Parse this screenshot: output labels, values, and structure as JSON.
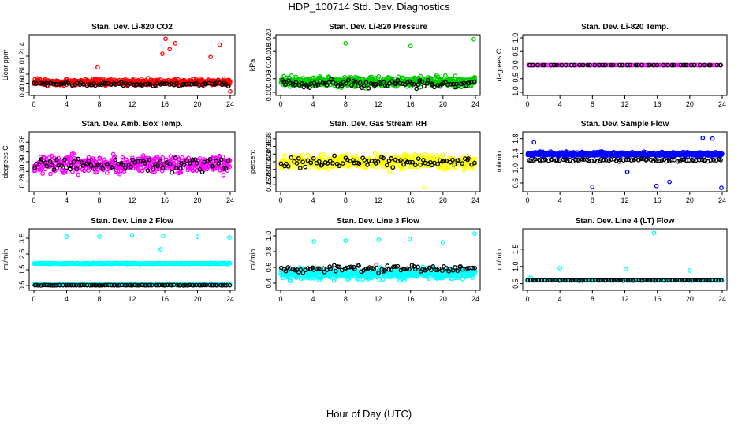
{
  "title": "HDP_100714  Std. Dev. Diagnostics",
  "xlabel": "Hour of Day (UTC)",
  "colors": {
    "red": "#ff0000",
    "green": "#00cc00",
    "magenta": "#ff00ff",
    "yellow": "#ffff00",
    "blue": "#0000ff",
    "cyan": "#00ffff",
    "black": "#000000"
  },
  "x_ticks": [
    "0",
    "4",
    "8",
    "12",
    "16",
    "20",
    "24"
  ],
  "chart_data": [
    {
      "type": "scatter",
      "title": "Stan. Dev. Li-820 CO2",
      "ylabel": "Licor ppm",
      "xlim": [
        0,
        24
      ],
      "ylim": [
        0.4,
        1.6
      ],
      "yticks": [
        "0.4",
        "0.6",
        "0.8",
        "1.0",
        "1.2",
        "1.4"
      ],
      "series": [
        {
          "color": "red",
          "n": 520,
          "base": 0.62,
          "spread": 0.1,
          "seed": 11,
          "outliers": [
            [
              16.1,
              1.58
            ],
            [
              16.6,
              1.35
            ],
            [
              17.3,
              1.48
            ],
            [
              15.7,
              1.25
            ],
            [
              22.7,
              1.45
            ],
            [
              21.6,
              1.18
            ],
            [
              7.8,
              0.95
            ],
            [
              24.0,
              0.42
            ]
          ]
        },
        {
          "color": "black",
          "n": 80,
          "base": 0.58,
          "spread": 0.05,
          "seed": 12,
          "outliers": []
        }
      ]
    },
    {
      "type": "scatter",
      "title": "Stan. Dev. Li-820 Pressure",
      "ylabel": "kPa",
      "xlim": [
        0,
        24
      ],
      "ylim": [
        0,
        0.02
      ],
      "yticks": [
        "0.000",
        "0.005",
        "0.010",
        "0.015",
        "0.020"
      ],
      "series": [
        {
          "color": "green",
          "n": 520,
          "base": 0.004,
          "spread": 0.0028,
          "seed": 21,
          "outliers": [
            [
              8.0,
              0.018
            ],
            [
              16.0,
              0.017
            ],
            [
              23.8,
              0.0195
            ]
          ]
        },
        {
          "color": "black",
          "n": 90,
          "base": 0.003,
          "spread": 0.0022,
          "seed": 22,
          "outliers": []
        }
      ]
    },
    {
      "type": "scatter",
      "title": "Stan. Dev. Li-820 Temp.",
      "ylabel": "degrees C",
      "xlim": [
        0,
        24
      ],
      "ylim": [
        -1,
        1
      ],
      "yticks": [
        "-1.0",
        "-0.5",
        "0.0",
        "0.5",
        "1.0"
      ],
      "series": [
        {
          "color": "magenta",
          "n": 96,
          "base": 0.0,
          "spread": 0.0,
          "seed": 31,
          "outliers": []
        },
        {
          "color": "black",
          "n": 48,
          "base": 0.0,
          "spread": 0.0,
          "seed": 32,
          "outliers": []
        }
      ]
    },
    {
      "type": "scatter",
      "title": "Stan. Dev. Amb. Box Temp.",
      "ylabel": "degrees C",
      "xlim": [
        0,
        24
      ],
      "ylim": [
        0.265,
        0.375
      ],
      "yticks": [
        "0.28",
        "0.30",
        "0.32",
        "0.34",
        "0.36"
      ],
      "series": [
        {
          "color": "magenta",
          "n": 460,
          "base": 0.315,
          "spread": 0.025,
          "seed": 41,
          "outliers": []
        },
        {
          "color": "black",
          "n": 80,
          "base": 0.315,
          "spread": 0.02,
          "seed": 42,
          "outliers": []
        }
      ]
    },
    {
      "type": "scatter",
      "title": "Stan. Dev. Gas Stream RH",
      "ylabel": "percent",
      "xlim": [
        0,
        24
      ],
      "ylim": [
        0.25,
        0.39
      ],
      "yticks": [
        "0.26",
        "0.28",
        "0.30",
        "0.32",
        "0.34",
        "0.36",
        "0.38"
      ],
      "series": [
        {
          "color": "yellow",
          "n": 460,
          "base": 0.32,
          "spread": 0.027,
          "seed": 51,
          "outliers": [
            [
              17.8,
              0.255
            ]
          ]
        },
        {
          "color": "black",
          "n": 80,
          "base": 0.32,
          "spread": 0.022,
          "seed": 52,
          "outliers": []
        }
      ]
    },
    {
      "type": "scatter",
      "title": "Stan. Dev. Sample Flow",
      "ylabel": "ml/min",
      "xlim": [
        0,
        24
      ],
      "ylim": [
        0.45,
        1.9
      ],
      "yticks": [
        "0.6",
        "1.0",
        "1.4",
        "1.8"
      ],
      "series": [
        {
          "color": "blue",
          "n": 500,
          "base": 1.38,
          "spread": 0.09,
          "seed": 61,
          "outliers": [
            [
              8.0,
              0.5
            ],
            [
              15.9,
              0.52
            ],
            [
              17.5,
              0.63
            ],
            [
              23.9,
              0.47
            ],
            [
              21.6,
              1.82
            ],
            [
              22.8,
              1.8
            ],
            [
              12.3,
              0.9
            ],
            [
              0.8,
              1.7
            ]
          ]
        },
        {
          "color": "black",
          "n": 80,
          "base": 1.22,
          "spread": 0.05,
          "seed": 62,
          "outliers": []
        }
      ]
    },
    {
      "type": "scatter",
      "title": "Stan. Dev. Line 2 Flow",
      "ylabel": "ml/min",
      "xlim": [
        0,
        24
      ],
      "ylim": [
        0.4,
        3.9
      ],
      "yticks": [
        "0.5",
        "1.5",
        "2.5",
        "3.5"
      ],
      "series": [
        {
          "color": "cyan",
          "n": 460,
          "base": 1.9,
          "spread": 0.05,
          "seed": 71,
          "outliers": [
            [
              4.0,
              3.6
            ],
            [
              8.0,
              3.6
            ],
            [
              12.0,
              3.7
            ],
            [
              15.8,
              3.65
            ],
            [
              20.0,
              3.6
            ],
            [
              23.9,
              3.55
            ],
            [
              15.5,
              2.8
            ]
          ]
        },
        {
          "color": "cyan",
          "n": 300,
          "base": 0.6,
          "spread": 0.03,
          "seed": 73,
          "outliers": []
        },
        {
          "color": "black",
          "n": 90,
          "base": 0.52,
          "spread": 0.02,
          "seed": 72,
          "outliers": []
        }
      ]
    },
    {
      "type": "scatter",
      "title": "Stan. Dev. Line 3 Flow",
      "ylabel": "ml/min",
      "xlim": [
        0,
        24
      ],
      "ylim": [
        0.35,
        1.05
      ],
      "yticks": [
        "0.4",
        "0.6",
        "0.8",
        "1.0"
      ],
      "series": [
        {
          "color": "cyan",
          "n": 520,
          "base": 0.52,
          "spread": 0.1,
          "seed": 81,
          "outliers": [
            [
              4.1,
              0.93
            ],
            [
              8.0,
              0.94
            ],
            [
              12.1,
              0.95
            ],
            [
              15.9,
              0.96
            ],
            [
              20.0,
              0.92
            ],
            [
              23.9,
              1.03
            ]
          ]
        },
        {
          "color": "black",
          "n": 90,
          "base": 0.58,
          "spread": 0.06,
          "seed": 82,
          "outliers": []
        }
      ]
    },
    {
      "type": "scatter",
      "title": "Stan. Dev. Line 4 (LT) Flow",
      "ylabel": "ml/min",
      "xlim": [
        0,
        24
      ],
      "ylim": [
        0.4,
        2.0
      ],
      "yticks": [
        "0.5",
        "1.0",
        "1.5"
      ],
      "series": [
        {
          "color": "cyan",
          "n": 320,
          "base": 0.6,
          "spread": 0.012,
          "seed": 91,
          "outliers": [
            [
              4.0,
              0.95
            ],
            [
              12.1,
              0.92
            ],
            [
              15.6,
              1.97
            ],
            [
              20.0,
              0.88
            ],
            [
              0.4,
              0.68
            ]
          ]
        },
        {
          "color": "black",
          "n": 90,
          "base": 0.6,
          "spread": 0.012,
          "seed": 92,
          "outliers": []
        }
      ]
    }
  ]
}
